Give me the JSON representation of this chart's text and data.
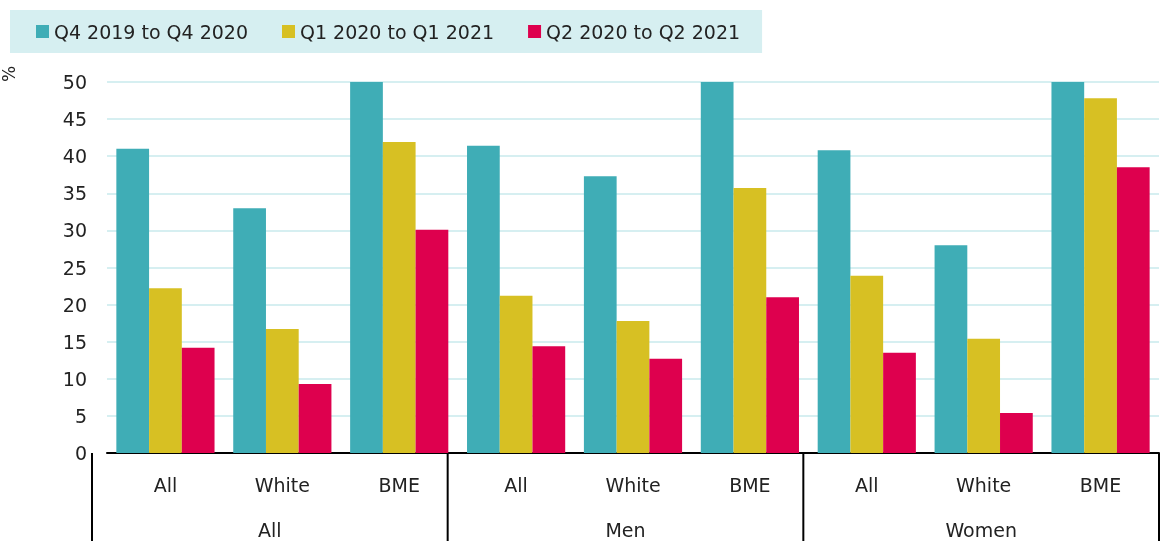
{
  "chart_data": {
    "type": "bar",
    "ylabel": "%",
    "categories": [
      "All",
      "White",
      "BME",
      "All",
      "White",
      "BME",
      "All",
      "White",
      "BME"
    ],
    "annotations": [
      "All",
      "Men",
      "Women"
    ],
    "series": [
      {
        "name": "Q4 2019 to Q4 2020",
        "color": "#3fadb6",
        "values": [
          41.0,
          33.0,
          50,
          41.4,
          37.3,
          50,
          40.8,
          28.0,
          50
        ]
      },
      {
        "name": "Q1 2020 to Q1 2021",
        "color": "#d7c023",
        "values": [
          22.2,
          16.7,
          41.9,
          21.2,
          17.8,
          35.7,
          23.9,
          15.4,
          47.8
        ]
      },
      {
        "name": "Q2 2020 to Q2 2021",
        "color": "#de004e",
        "values": [
          14.2,
          9.3,
          30.1,
          14.4,
          12.7,
          21.0,
          13.5,
          5.4,
          38.5
        ]
      }
    ],
    "ylim": [
      0,
      50
    ],
    "yticks": [
      0,
      5,
      10,
      15,
      20,
      25,
      30,
      35,
      40,
      45,
      50
    ],
    "grid": "y",
    "legend": "top left"
  }
}
